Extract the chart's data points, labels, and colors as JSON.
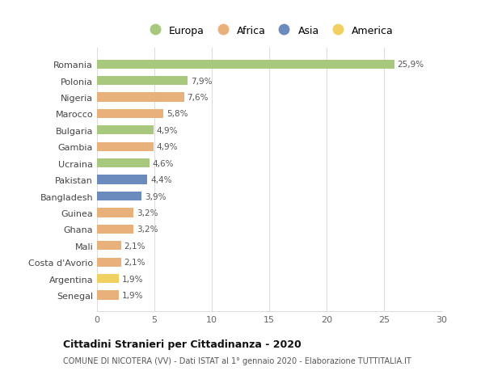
{
  "countries": [
    "Romania",
    "Polonia",
    "Nigeria",
    "Marocco",
    "Bulgaria",
    "Gambia",
    "Ucraina",
    "Pakistan",
    "Bangladesh",
    "Guinea",
    "Ghana",
    "Mali",
    "Costa d'Avorio",
    "Argentina",
    "Senegal"
  ],
  "values": [
    25.9,
    7.9,
    7.6,
    5.8,
    4.9,
    4.9,
    4.6,
    4.4,
    3.9,
    3.2,
    3.2,
    2.1,
    2.1,
    1.9,
    1.9
  ],
  "labels": [
    "25,9%",
    "7,9%",
    "7,6%",
    "5,8%",
    "4,9%",
    "4,9%",
    "4,6%",
    "4,4%",
    "3,9%",
    "3,2%",
    "3,2%",
    "2,1%",
    "2,1%",
    "1,9%",
    "1,9%"
  ],
  "continents": [
    "Europa",
    "Europa",
    "Africa",
    "Africa",
    "Europa",
    "Africa",
    "Europa",
    "Asia",
    "Asia",
    "Africa",
    "Africa",
    "Africa",
    "Africa",
    "America",
    "Africa"
  ],
  "colors": {
    "Europa": "#a8c87e",
    "Africa": "#e8b07a",
    "Asia": "#6b8bbf",
    "America": "#f0d060"
  },
  "legend_order": [
    "Europa",
    "Africa",
    "Asia",
    "America"
  ],
  "xlim": [
    0,
    30
  ],
  "xticks": [
    0,
    5,
    10,
    15,
    20,
    25,
    30
  ],
  "title": "Cittadini Stranieri per Cittadinanza - 2020",
  "subtitle": "COMUNE DI NICOTERA (VV) - Dati ISTAT al 1° gennaio 2020 - Elaborazione TUTTITALIA.IT",
  "background_color": "#ffffff",
  "grid_color": "#dddddd",
  "bar_height": 0.55
}
